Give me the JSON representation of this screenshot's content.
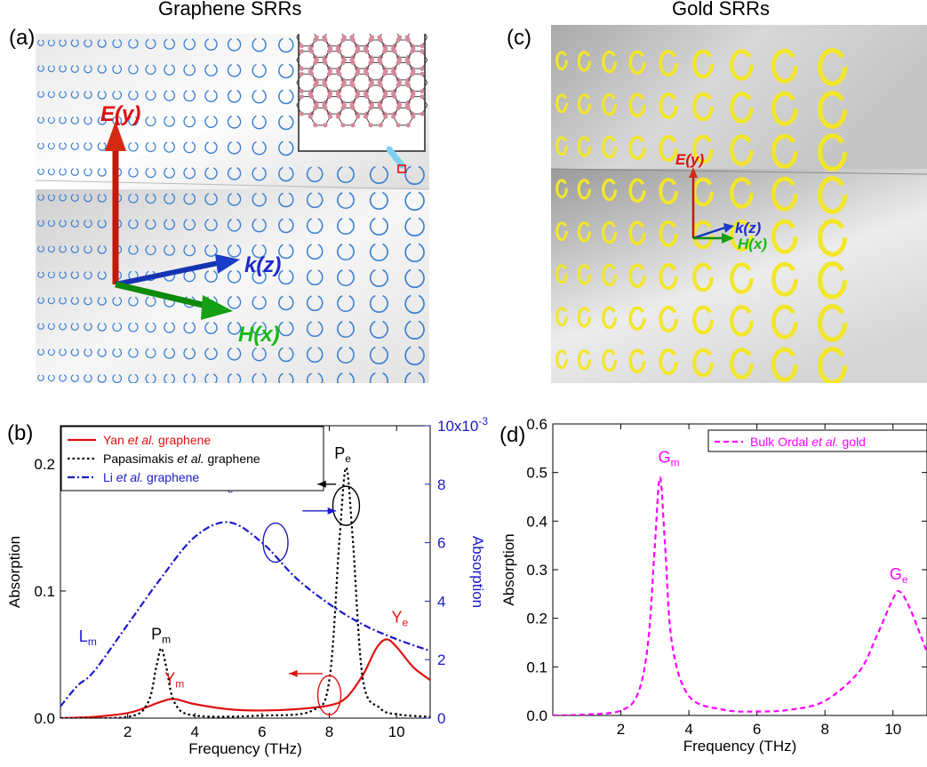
{
  "panels": {
    "a": {
      "label": "(a)",
      "title": "Graphene SRRs",
      "e_label": "E(y)",
      "k_label": "k(z)",
      "h_label": "H(x)"
    },
    "c": {
      "label": "(c)",
      "title": "Gold SRRs",
      "e_label": "E(y)",
      "k_label": "k(z)",
      "h_label": "H(x)"
    },
    "b": {
      "label": "(b)"
    },
    "d": {
      "label": "(d)"
    }
  },
  "colors": {
    "yan": "#e01010",
    "papa": "#000000",
    "li": "#1a1acc",
    "ordal": "#ff00ff",
    "srr_blue": "#3a7fd0",
    "srr_gold": "#f2e62a"
  },
  "chart_data": [
    {
      "id": "b",
      "type": "line",
      "xlabel": "Frequency (THz)",
      "ylabel": "Absorption",
      "ylabel_right": "Absorption",
      "xlim": [
        0,
        11
      ],
      "ylim": [
        0,
        0.23
      ],
      "ylim_right": [
        0,
        0.01
      ],
      "xticks": [
        "2",
        "4",
        "6",
        "8",
        "10"
      ],
      "yticks": [
        "0.0",
        "0.1",
        "0.2"
      ],
      "yticks_right": [
        "0",
        "2",
        "4",
        "6",
        "8",
        "10x10-3"
      ],
      "legend_position": "top-left",
      "series": [
        {
          "name": "Yan et al. graphene",
          "axis": "left",
          "style": "solid",
          "x": [
            0,
            1,
            2,
            2.5,
            3,
            3.4,
            4,
            5,
            6,
            7,
            8,
            8.5,
            9,
            9.4,
            9.7,
            10,
            10.5,
            11
          ],
          "y": [
            0,
            0.001,
            0.004,
            0.008,
            0.013,
            0.015,
            0.011,
            0.007,
            0.006,
            0.007,
            0.01,
            0.016,
            0.034,
            0.055,
            0.062,
            0.056,
            0.04,
            0.03
          ]
        },
        {
          "name": "Papasimakis et al. graphene",
          "axis": "left",
          "style": "dotted",
          "x": [
            0,
            2,
            2.6,
            2.85,
            3.0,
            3.15,
            3.4,
            4,
            6,
            7.5,
            8.0,
            8.3,
            8.5,
            8.7,
            9.0,
            9.5,
            10,
            11
          ],
          "y": [
            0,
            0.001,
            0.012,
            0.04,
            0.055,
            0.04,
            0.012,
            0.002,
            0.002,
            0.006,
            0.03,
            0.14,
            0.197,
            0.14,
            0.03,
            0.008,
            0.003,
            0.001
          ]
        },
        {
          "name": "Li et al. graphene",
          "axis": "right",
          "style": "dashdot",
          "x": [
            0,
            0.5,
            1,
            2,
            3,
            4,
            5,
            6,
            7,
            8,
            9,
            10,
            11
          ],
          "y": [
            0.0004,
            0.0011,
            0.0016,
            0.0032,
            0.0048,
            0.0062,
            0.0067,
            0.006,
            0.0048,
            0.0039,
            0.0032,
            0.0027,
            0.0023
          ]
        }
      ],
      "annotations": [
        {
          "text": "L",
          "sub": "e",
          "x": 4.7,
          "y": 0.18,
          "color": "#1a1acc"
        },
        {
          "text": "L",
          "sub": "m",
          "x": 0.55,
          "y": 0.06,
          "color": "#1a1acc"
        },
        {
          "text": "P",
          "sub": "m",
          "x": 2.7,
          "y": 0.062,
          "color": "#000000"
        },
        {
          "text": "Y",
          "sub": "m",
          "x": 3.1,
          "y": 0.027,
          "color": "#e01010"
        },
        {
          "text": "P",
          "sub": "e",
          "x": 8.15,
          "y": 0.204,
          "color": "#000000"
        },
        {
          "text": "Y",
          "sub": "e",
          "x": 9.85,
          "y": 0.075,
          "color": "#e01010"
        }
      ]
    },
    {
      "id": "d",
      "type": "line",
      "xlabel": "Frequency (THz)",
      "ylabel": "Absorption",
      "xlim": [
        0,
        11
      ],
      "ylim": [
        0,
        0.6
      ],
      "xticks": [
        "2",
        "4",
        "6",
        "8",
        "10"
      ],
      "yticks": [
        "0.0",
        "0.1",
        "0.2",
        "0.3",
        "0.4",
        "0.5",
        "0.6"
      ],
      "legend_position": "top-right",
      "series": [
        {
          "name": "Bulk Ordal et al. gold",
          "style": "dashed",
          "x": [
            0,
            1,
            2,
            2.5,
            2.8,
            3.0,
            3.15,
            3.3,
            3.5,
            4,
            5,
            6,
            7,
            8,
            9,
            9.5,
            10.0,
            10.2,
            10.5,
            11
          ],
          "y": [
            0,
            0.002,
            0.01,
            0.045,
            0.15,
            0.35,
            0.49,
            0.35,
            0.15,
            0.04,
            0.012,
            0.008,
            0.012,
            0.03,
            0.09,
            0.16,
            0.24,
            0.255,
            0.22,
            0.13
          ]
        }
      ],
      "annotations": [
        {
          "text": "G",
          "sub": "m",
          "x": 3.1,
          "y": 0.52,
          "color": "#ff00ff"
        },
        {
          "text": "G",
          "sub": "e",
          "x": 9.9,
          "y": 0.28,
          "color": "#ff00ff"
        }
      ]
    }
  ]
}
